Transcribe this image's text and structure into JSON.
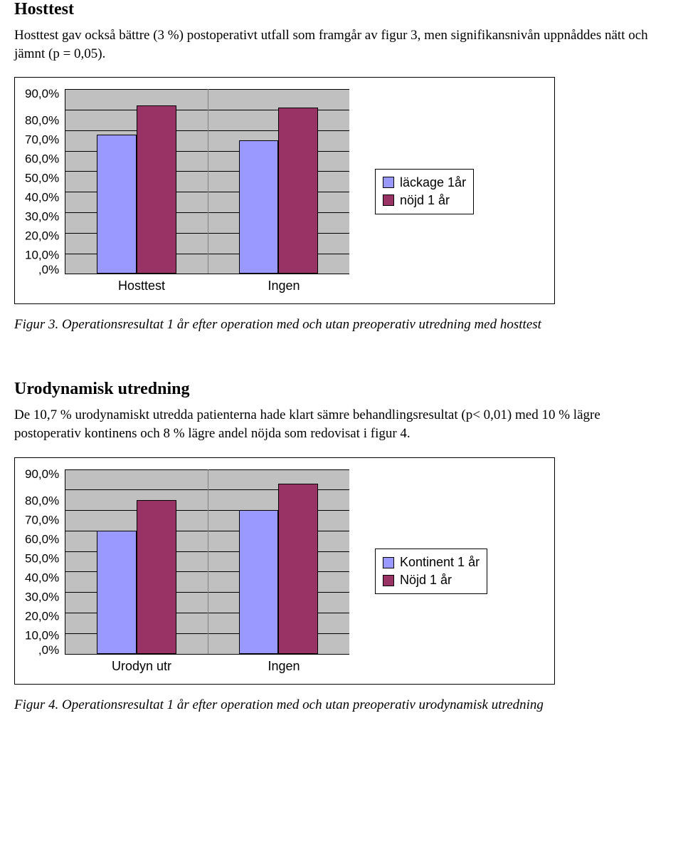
{
  "section1": {
    "title": "Hosttest",
    "paragraph": "Hosttest gav också bättre (3 %) postoperativt utfall som framgår av figur 3, men signifikansnivån uppnåddes nätt och jämnt (p = 0,05).",
    "caption": "Figur 3. Operationsresultat 1 år efter operation med och utan preoperativ utredning med hosttest"
  },
  "section2": {
    "title": "Urodynamisk utredning",
    "paragraph": "De 10,7 % urodynamiskt utredda patienterna hade klart sämre behandlingsresultat (p< 0,01) med 10 % lägre postoperativ kontinens och 8 % lägre andel nöjda som redovisat i figur 4.",
    "caption": "Figur 4. Operationsresultat 1 år efter operation med och utan preoperativ urodynamisk utredning"
  },
  "chart1": {
    "type": "bar",
    "categories": [
      "Hosttest",
      "Ingen"
    ],
    "series": [
      {
        "label": "läckage 1år",
        "color": "#9999ff",
        "values": [
          68,
          65
        ]
      },
      {
        "label": "nöjd 1 år",
        "color": "#993366",
        "values": [
          82,
          81
        ]
      }
    ],
    "y_ticks": [
      "90,0%",
      "80,0%",
      "70,0%",
      "60,0%",
      "50,0%",
      "40,0%",
      "30,0%",
      "20,0%",
      "10,0%",
      ",0%"
    ],
    "y_max": 90,
    "plot_bg": "#c0c0c0",
    "grid_color": "#000000",
    "bar_width_pct": 28,
    "tick_fontsize": 17,
    "label_fontsize": 18
  },
  "chart2": {
    "type": "bar",
    "categories": [
      "Urodyn utr",
      "Ingen"
    ],
    "series": [
      {
        "label": "Kontinent 1 år",
        "color": "#9999ff",
        "values": [
          60,
          70
        ]
      },
      {
        "label": "Nöjd 1 år",
        "color": "#993366",
        "values": [
          75,
          83
        ]
      }
    ],
    "y_ticks": [
      "90,0%",
      "80,0%",
      "70,0%",
      "60,0%",
      "50,0%",
      "40,0%",
      "30,0%",
      "20,0%",
      "10,0%",
      ",0%"
    ],
    "y_max": 90,
    "plot_bg": "#c0c0c0",
    "grid_color": "#000000",
    "bar_width_pct": 28,
    "tick_fontsize": 17,
    "label_fontsize": 18
  }
}
